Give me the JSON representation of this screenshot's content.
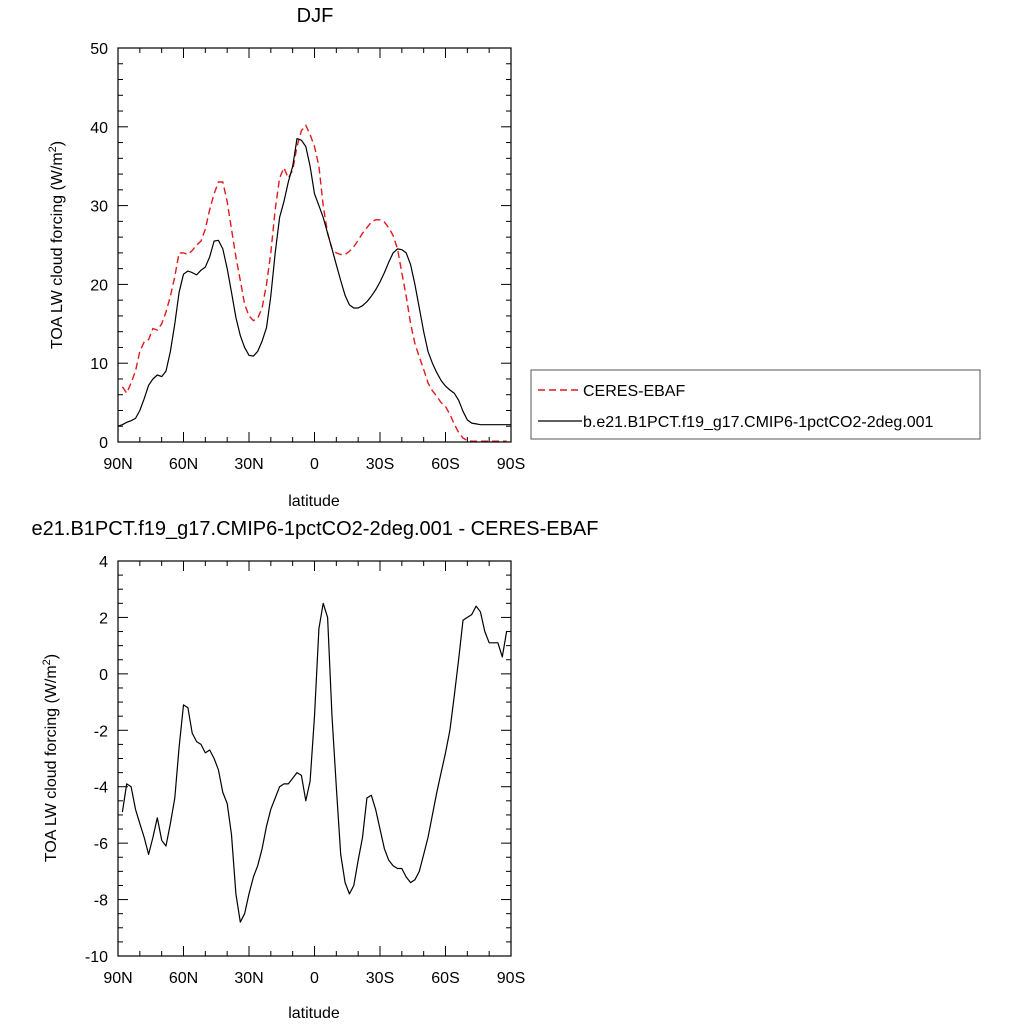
{
  "chart_data": [
    {
      "type": "line",
      "title": "DJF",
      "xlabel": "latitude",
      "ylabel": "TOA LW cloud forcing (W/m",
      "ylabel_sup": "2",
      "ylabel_end": ")",
      "xlim": [
        90,
        -90
      ],
      "ylim": [
        0,
        50
      ],
      "x_ticks": [
        90,
        60,
        30,
        0,
        -30,
        -60,
        -90
      ],
      "x_tick_labels": [
        "90N",
        "60N",
        "30N",
        "0",
        "30S",
        "60S",
        "90S"
      ],
      "y_ticks": [
        0,
        10,
        20,
        30,
        40,
        50
      ],
      "y_tick_labels": [
        "0",
        "10",
        "20",
        "30",
        "40",
        "50"
      ],
      "legend_position": "right",
      "series": [
        {
          "name": "CERES-EBAF",
          "color": "#e0191c",
          "dash": "dashed",
          "x": [
            88,
            86,
            84,
            82,
            80,
            78,
            76,
            74,
            72,
            70,
            68,
            66,
            64,
            62,
            60,
            58,
            56,
            54,
            52,
            50,
            48,
            46,
            44,
            42,
            40,
            38,
            36,
            34,
            32,
            30,
            28,
            26,
            24,
            22,
            20,
            18,
            16,
            14,
            12,
            10,
            8,
            6,
            4,
            2,
            0,
            -2,
            -4,
            -6,
            -8,
            -10,
            -12,
            -14,
            -16,
            -18,
            -20,
            -22,
            -24,
            -26,
            -28,
            -30,
            -32,
            -34,
            -36,
            -38,
            -40,
            -42,
            -44,
            -46,
            -48,
            -50,
            -52,
            -54,
            -56,
            -58,
            -60,
            -62,
            -64,
            -66,
            -68,
            -70,
            -72,
            -74,
            -76,
            -78,
            -80,
            -82,
            -84,
            -86,
            -88
          ],
          "y": [
            7.0,
            6.2,
            7.5,
            9.0,
            11.5,
            12.7,
            13.0,
            14.4,
            14.2,
            15.0,
            16.5,
            18.5,
            21.0,
            24.0,
            24.0,
            23.8,
            24.3,
            25.0,
            25.5,
            27.0,
            29.5,
            31.5,
            33.0,
            33.0,
            30.5,
            27.0,
            23.5,
            20.5,
            17.5,
            16.0,
            15.4,
            15.7,
            17.0,
            20.0,
            24.0,
            29.5,
            33.5,
            34.8,
            33.5,
            34.5,
            37.5,
            39.5,
            40.2,
            39.0,
            37.5,
            35.0,
            30.0,
            26.5,
            24.5,
            24.0,
            23.8,
            23.8,
            24.2,
            24.8,
            25.6,
            26.5,
            27.2,
            27.9,
            28.2,
            28.2,
            27.9,
            27.2,
            26.2,
            24.5,
            21.5,
            18.5,
            15.0,
            12.5,
            10.8,
            9.2,
            7.5,
            6.5,
            5.8,
            5.0,
            4.5,
            3.5,
            2.3,
            1.2,
            0.5,
            0.2,
            0.1,
            0.1,
            0.1,
            0.1,
            0.1,
            0.1,
            0.1,
            0.1,
            0.1
          ]
        },
        {
          "name": "b.e21.B1PCT.f19_g17.CMIP6-1pctCO2-2deg.001",
          "color": "#000000",
          "dash": "solid",
          "x": [
            90,
            88,
            86,
            84,
            82,
            80,
            78,
            76,
            74,
            72,
            70,
            68,
            66,
            64,
            62,
            60,
            58,
            56,
            54,
            52,
            50,
            48,
            46,
            44,
            42,
            40,
            38,
            36,
            34,
            32,
            30,
            28,
            26,
            24,
            22,
            20,
            18,
            16,
            14,
            12,
            10,
            8,
            6,
            4,
            2,
            0,
            -2,
            -4,
            -6,
            -8,
            -10,
            -12,
            -14,
            -16,
            -18,
            -20,
            -22,
            -24,
            -26,
            -28,
            -30,
            -32,
            -34,
            -36,
            -38,
            -40,
            -42,
            -44,
            -46,
            -48,
            -50,
            -52,
            -54,
            -56,
            -58,
            -60,
            -62,
            -64,
            -66,
            -68,
            -70,
            -72,
            -74,
            -76,
            -78,
            -80,
            -82,
            -84,
            -86,
            -88,
            -90
          ],
          "y": [
            2.0,
            2.2,
            2.5,
            2.7,
            3.0,
            4.0,
            5.5,
            7.2,
            8.0,
            8.5,
            8.3,
            9.0,
            11.5,
            15.0,
            19.0,
            21.3,
            21.7,
            21.5,
            21.2,
            21.8,
            22.2,
            23.5,
            25.5,
            25.6,
            24.5,
            22.0,
            19.0,
            15.8,
            13.5,
            12.0,
            11.0,
            10.9,
            11.5,
            12.8,
            14.5,
            18.5,
            24.0,
            28.5,
            30.5,
            33.0,
            35.0,
            38.5,
            38.3,
            37.5,
            35.0,
            31.5,
            30.0,
            28.5,
            26.5,
            24.5,
            22.5,
            20.5,
            18.6,
            17.4,
            17.0,
            17.0,
            17.3,
            17.8,
            18.5,
            19.3,
            20.3,
            21.5,
            22.8,
            24.0,
            24.5,
            24.4,
            24.0,
            22.5,
            20.0,
            17.0,
            14.0,
            11.5,
            10.0,
            8.8,
            7.8,
            7.1,
            6.6,
            6.2,
            5.3,
            3.9,
            2.8,
            2.4,
            2.3,
            2.2,
            2.2,
            2.2,
            2.2,
            2.2,
            2.2,
            2.2,
            2.2
          ]
        }
      ]
    },
    {
      "type": "line",
      "title": "e21.B1PCT.f19_g17.CMIP6-1pctCO2-2deg.001 - CERES-EBAF",
      "xlabel": "latitude",
      "ylabel": "TOA LW cloud forcing (W/m",
      "ylabel_sup": "2",
      "ylabel_end": ")",
      "xlim": [
        90,
        -90
      ],
      "ylim": [
        -10,
        4
      ],
      "x_ticks": [
        90,
        60,
        30,
        0,
        -30,
        -60,
        -90
      ],
      "x_tick_labels": [
        "90N",
        "60N",
        "30N",
        "0",
        "30S",
        "60S",
        "90S"
      ],
      "y_ticks": [
        -10,
        -8,
        -6,
        -4,
        -2,
        0,
        2,
        4
      ],
      "y_tick_labels": [
        "-10",
        "-8",
        "-6",
        "-4",
        "-2",
        "0",
        "2",
        "4"
      ],
      "series": [
        {
          "name": "",
          "color": "#000000",
          "dash": "solid",
          "x": [
            88,
            86,
            84,
            82,
            80,
            78,
            76,
            74,
            72,
            70,
            68,
            66,
            64,
            62,
            60,
            58,
            56,
            54,
            52,
            50,
            48,
            46,
            44,
            42,
            40,
            38,
            36,
            34,
            32,
            30,
            28,
            26,
            24,
            22,
            20,
            18,
            16,
            14,
            12,
            10,
            8,
            6,
            4,
            2,
            0,
            -2,
            -4,
            -6,
            -8,
            -10,
            -12,
            -14,
            -16,
            -18,
            -20,
            -22,
            -24,
            -26,
            -28,
            -30,
            -32,
            -34,
            -36,
            -38,
            -40,
            -42,
            -44,
            -46,
            -48,
            -50,
            -52,
            -54,
            -56,
            -58,
            -60,
            -62,
            -64,
            -66,
            -68,
            -70,
            -72,
            -74,
            -76,
            -78,
            -80,
            -82,
            -84,
            -86,
            -88
          ],
          "y": [
            -4.9,
            -3.9,
            -4.0,
            -4.8,
            -5.3,
            -5.8,
            -6.4,
            -5.8,
            -5.1,
            -5.9,
            -6.1,
            -5.3,
            -4.4,
            -2.6,
            -1.1,
            -1.2,
            -2.1,
            -2.4,
            -2.5,
            -2.8,
            -2.7,
            -3.0,
            -3.4,
            -4.2,
            -4.6,
            -5.7,
            -7.8,
            -8.8,
            -8.5,
            -7.8,
            -7.2,
            -6.8,
            -6.2,
            -5.4,
            -4.8,
            -4.4,
            -4.0,
            -3.9,
            -3.9,
            -3.7,
            -3.5,
            -3.6,
            -4.5,
            -3.8,
            -1.5,
            1.6,
            2.5,
            2.0,
            -1.5,
            -4.0,
            -6.4,
            -7.4,
            -7.8,
            -7.5,
            -6.6,
            -5.8,
            -4.4,
            -4.3,
            -4.8,
            -5.5,
            -6.2,
            -6.6,
            -6.8,
            -6.9,
            -6.9,
            -7.2,
            -7.4,
            -7.3,
            -7.0,
            -6.4,
            -5.8,
            -5.0,
            -4.2,
            -3.5,
            -2.8,
            -2.0,
            -0.8,
            0.5,
            1.9,
            2.0,
            2.1,
            2.4,
            2.2,
            1.5,
            1.1,
            1.1,
            1.1,
            0.6,
            1.5
          ]
        }
      ]
    }
  ]
}
